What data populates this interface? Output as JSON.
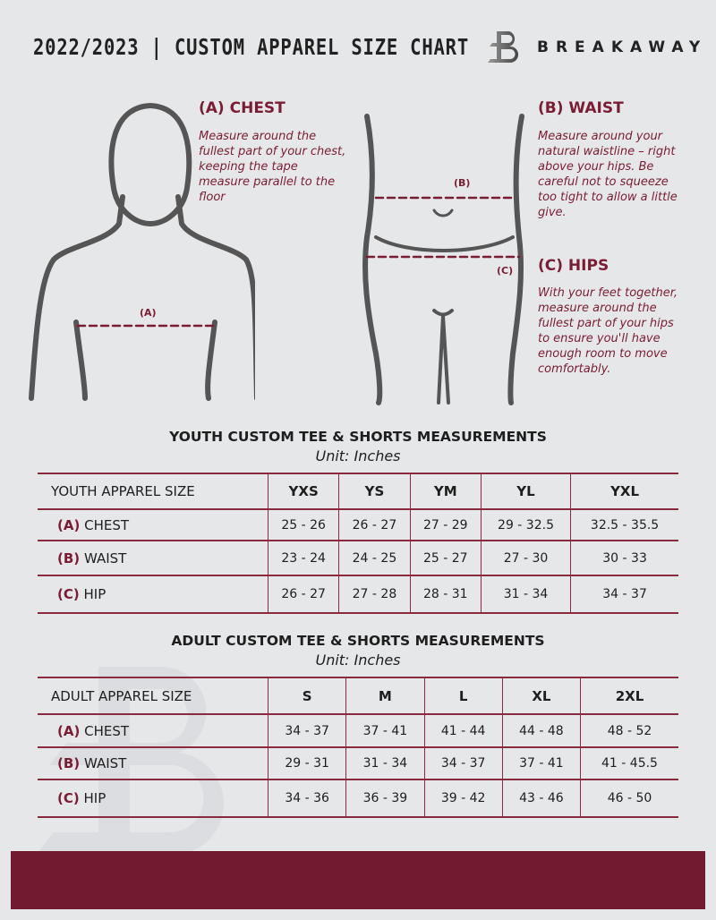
{
  "header": {
    "title": "2022/2023  |  CUSTOM APPAREL SIZE CHART",
    "brand": "BREAKAWAY",
    "logo_letter": "B"
  },
  "colors": {
    "accent": "#7a1d34",
    "footer": "#721a2f",
    "background": "#e6e7e9"
  },
  "chest": {
    "heading": "(A) CHEST",
    "text": "Measure around the fullest part of your chest, keeping the tape measure parallel to the floor",
    "marker": "(A)"
  },
  "waist": {
    "heading": "(B) WAIST",
    "text": "Measure around your natural waistline – right above your hips. Be careful not to squeeze too tight to allow a little give.",
    "marker": "(B)"
  },
  "hips": {
    "heading": "(C) HIPS",
    "text": "With your feet together, measure around the fullest part of your hips to ensure you'll have enough room to move comfortably.",
    "marker": "(C)"
  },
  "youth": {
    "title": "YOUTH CUSTOM TEE & SHORTS MEASUREMENTS",
    "unit": "Unit: Inches",
    "header": "YOUTH APPAREL SIZE",
    "sizes": [
      "YXS",
      "YS",
      "YM",
      "YL",
      "YXL"
    ],
    "rows": [
      {
        "code": "(A)",
        "label": "CHEST",
        "values": [
          "25 - 26",
          "26 - 27",
          "27 - 29",
          "29 - 32.5",
          "32.5 - 35.5"
        ]
      },
      {
        "code": "(B)",
        "label": "WAIST",
        "values": [
          "23 - 24",
          "24 - 25",
          "25 - 27",
          "27 - 30",
          "30 - 33"
        ]
      },
      {
        "code": "(C)",
        "label": "HIP",
        "values": [
          "26 - 27",
          "27 - 28",
          "28 - 31",
          "31 - 34",
          "34 - 37"
        ]
      }
    ]
  },
  "adult": {
    "title": "ADULT CUSTOM TEE & SHORTS MEASUREMENTS",
    "unit": "Unit: Inches",
    "header": "ADULT APPAREL SIZE",
    "sizes": [
      "S",
      "M",
      "L",
      "XL",
      "2XL"
    ],
    "rows": [
      {
        "code": "(A)",
        "label": "CHEST",
        "values": [
          "34 - 37",
          "37 - 41",
          "41 - 44",
          "44 - 48",
          "48 - 52"
        ]
      },
      {
        "code": "(B)",
        "label": "WAIST",
        "values": [
          "29 - 31",
          "31 - 34",
          "34 - 37",
          "37 - 41",
          "41 - 45.5"
        ]
      },
      {
        "code": "(C)",
        "label": "HIP",
        "values": [
          "34 - 36",
          "36 - 39",
          "39 - 42",
          "43 - 46",
          "46 - 50"
        ]
      }
    ]
  }
}
